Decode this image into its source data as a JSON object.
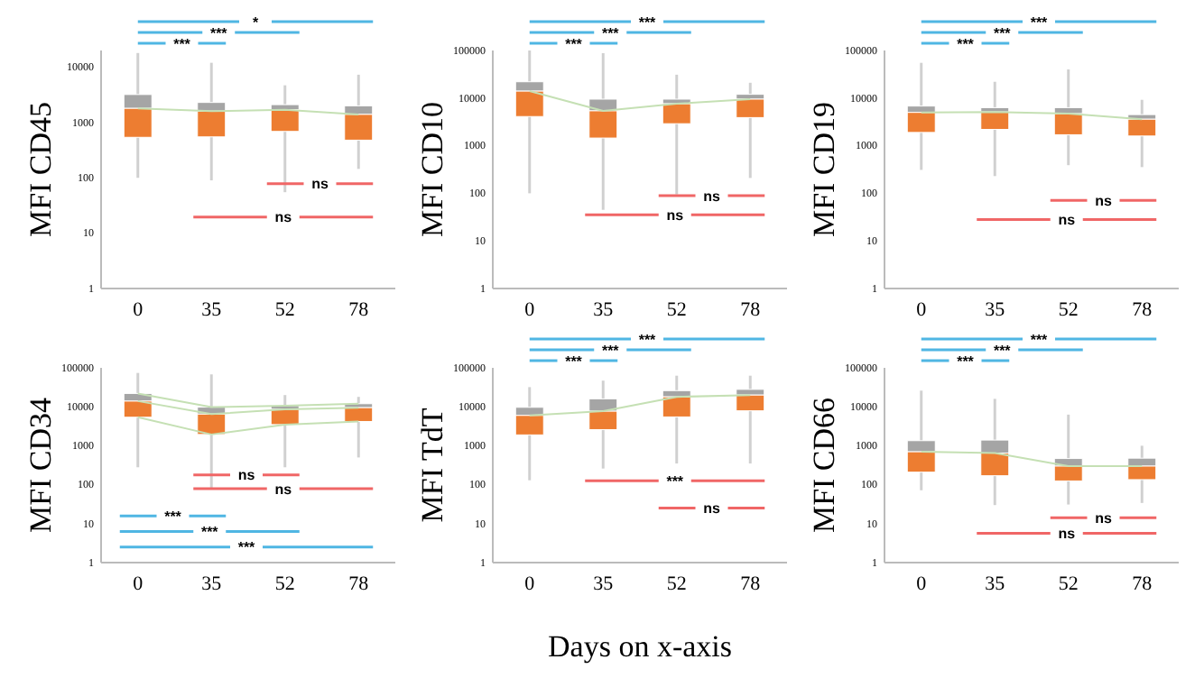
{
  "chart_data": [
    {
      "type": "box",
      "ylabel": "MFI CD45",
      "categories": [
        "0",
        "35",
        "52",
        "78"
      ],
      "log": "y",
      "ylim": [
        1,
        20000
      ],
      "yticks": [
        1,
        10,
        100,
        1000,
        10000
      ],
      "annotations": [
        "*",
        "***",
        "***",
        "ns",
        "ns"
      ],
      "series": [
        {
          "type": "box",
          "color": "#ed7d31",
          "boxes": [
            {
              "low": 100,
              "q1": 540,
              "median": 1800,
              "q3": 3200,
              "high": 18000
            },
            {
              "low": 90,
              "q1": 550,
              "median": 1600,
              "q3": 2300,
              "high": 12000
            },
            {
              "low": 55,
              "q1": 690,
              "median": 1700,
              "q3": 2100,
              "high": 4700
            },
            {
              "low": 145,
              "q1": 480,
              "median": 1400,
              "q3": 2000,
              "high": 7300
            }
          ]
        },
        {
          "type": "line",
          "color": "#c5e0b4",
          "values": [
            1800,
            1600,
            1700,
            1400
          ]
        }
      ]
    },
    {
      "type": "box",
      "ylabel": "MFI CD10",
      "categories": [
        "0",
        "35",
        "52",
        "78"
      ],
      "log": "y",
      "ylim": [
        1,
        100000
      ],
      "yticks": [
        1,
        10,
        100,
        1000,
        10000,
        100000
      ],
      "annotations": [
        "***",
        "***",
        "***",
        "ns",
        "ns"
      ],
      "series": [
        {
          "type": "box",
          "color": "#ed7d31",
          "boxes": [
            {
              "low": 100,
              "q1": 4100,
              "median": 14000,
              "q3": 22000,
              "high": 100000
            },
            {
              "low": 45,
              "q1": 1450,
              "median": 5400,
              "q3": 9500,
              "high": 88000
            },
            {
              "low": 95,
              "q1": 2900,
              "median": 7600,
              "q3": 9500,
              "high": 31000
            },
            {
              "low": 210,
              "q1": 3900,
              "median": 9500,
              "q3": 12000,
              "high": 21000
            }
          ]
        },
        {
          "type": "line",
          "color": "#c5e0b4",
          "values": [
            14000,
            5400,
            7600,
            9500
          ]
        }
      ]
    },
    {
      "type": "box",
      "ylabel": "MFI CD19",
      "categories": [
        "0",
        "35",
        "52",
        "78"
      ],
      "log": "y",
      "ylim": [
        1,
        100000
      ],
      "yticks": [
        1,
        10,
        100,
        1000,
        10000,
        100000
      ],
      "annotations": [
        "***",
        "***",
        "***",
        "ns",
        "ns"
      ],
      "series": [
        {
          "type": "box",
          "color": "#ed7d31",
          "boxes": [
            {
              "low": 310,
              "q1": 1900,
              "median": 5000,
              "q3": 6800,
              "high": 55000
            },
            {
              "low": 230,
              "q1": 2200,
              "median": 5100,
              "q3": 6300,
              "high": 22000
            },
            {
              "low": 390,
              "q1": 1700,
              "median": 4700,
              "q3": 6300,
              "high": 40000
            },
            {
              "low": 355,
              "q1": 1600,
              "median": 3600,
              "q3": 4500,
              "high": 9200
            }
          ]
        },
        {
          "type": "line",
          "color": "#c5e0b4",
          "values": [
            5000,
            5100,
            4700,
            3600
          ]
        }
      ]
    },
    {
      "type": "box",
      "ylabel": "MFI CD34",
      "categories": [
        "0",
        "35",
        "52",
        "78"
      ],
      "log": "y",
      "ylim": [
        1,
        100000
      ],
      "yticks": [
        1,
        10,
        100,
        1000,
        10000,
        100000
      ],
      "annotations": [
        "ns",
        "ns",
        "***",
        "***",
        "***"
      ],
      "series": [
        {
          "type": "box",
          "color": "#ed7d31",
          "boxes": [
            {
              "low": 280,
              "q1": 5400,
              "median": 14000,
              "q3": 22000,
              "high": 74000
            },
            {
              "low": 75,
              "q1": 1950,
              "median": 6500,
              "q3": 9800,
              "high": 68000
            },
            {
              "low": 280,
              "q1": 3500,
              "median": 8600,
              "q3": 10700,
              "high": 20000
            },
            {
              "low": 500,
              "q1": 4200,
              "median": 9500,
              "q3": 12000,
              "high": 18000
            }
          ]
        },
        {
          "type": "line",
          "color": "#c5e0b4",
          "values": [
            22000,
            9800,
            10700,
            12000
          ]
        },
        {
          "type": "line",
          "color": "#c5e0b4",
          "values": [
            14000,
            6500,
            8600,
            9500
          ]
        },
        {
          "type": "line",
          "color": "#c5e0b4",
          "values": [
            5400,
            1950,
            3500,
            4200
          ]
        }
      ]
    },
    {
      "type": "box",
      "ylabel": "MFI TdT",
      "xlabel": "Days on x-axis",
      "categories": [
        "0",
        "35",
        "52",
        "78"
      ],
      "log": "y",
      "ylim": [
        1,
        100000
      ],
      "yticks": [
        1,
        10,
        100,
        1000,
        10000,
        100000
      ],
      "annotations": [
        "***",
        "***",
        "***",
        "***",
        "ns"
      ],
      "series": [
        {
          "type": "box",
          "color": "#ed7d31",
          "boxes": [
            {
              "low": 130,
              "q1": 1900,
              "median": 6000,
              "q3": 9700,
              "high": 32000
            },
            {
              "low": 260,
              "q1": 2600,
              "median": 7700,
              "q3": 16000,
              "high": 47000
            },
            {
              "low": 350,
              "q1": 5500,
              "median": 18000,
              "q3": 26000,
              "high": 63000
            },
            {
              "low": 350,
              "q1": 7900,
              "median": 20000,
              "q3": 28000,
              "high": 63000
            }
          ]
        },
        {
          "type": "line",
          "color": "#c5e0b4",
          "values": [
            6000,
            7700,
            18000,
            20000
          ]
        }
      ]
    },
    {
      "type": "box",
      "ylabel": "MFI CD66",
      "categories": [
        "0",
        "35",
        "52",
        "78"
      ],
      "log": "y",
      "ylim": [
        1,
        100000
      ],
      "yticks": [
        1,
        10,
        100,
        1000,
        10000,
        100000
      ],
      "annotations": [
        "***",
        "***",
        "***",
        "ns",
        "ns"
      ],
      "series": [
        {
          "type": "box",
          "color": "#ed7d31",
          "boxes": [
            {
              "low": 72,
              "q1": 210,
              "median": 700,
              "q3": 1350,
              "high": 26000
            },
            {
              "low": 30,
              "q1": 170,
              "median": 650,
              "q3": 1400,
              "high": 16000
            },
            {
              "low": 31,
              "q1": 125,
              "median": 300,
              "q3": 470,
              "high": 6300
            },
            {
              "low": 34,
              "q1": 135,
              "median": 300,
              "q3": 480,
              "high": 1000
            }
          ]
        },
        {
          "type": "line",
          "color": "#c5e0b4",
          "values": [
            700,
            650,
            300,
            300
          ]
        }
      ]
    }
  ]
}
